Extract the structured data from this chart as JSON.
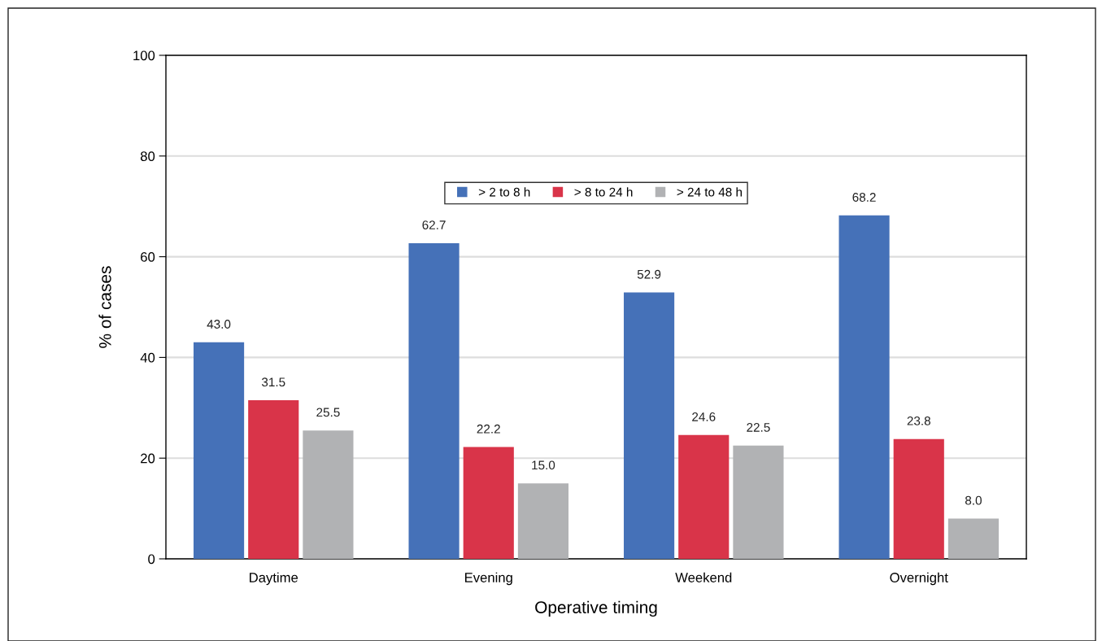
{
  "chart_data": {
    "type": "bar",
    "xlabel": "Operative timing",
    "ylabel": "% of cases",
    "categories": [
      "Daytime",
      "Evening",
      "Weekend",
      "Overnight"
    ],
    "series": [
      {
        "name": "> 2 to 8 h",
        "color": "#4571b8",
        "values": [
          43.0,
          62.7,
          52.9,
          68.2
        ],
        "value_labels": [
          "43.0",
          "62.7",
          "52.9",
          "68.2"
        ]
      },
      {
        "name": "> 8 to 24 h",
        "color": "#d93449",
        "values": [
          31.5,
          22.2,
          24.6,
          23.8
        ],
        "value_labels": [
          "31.5",
          "22.2",
          "24.6",
          "23.8"
        ]
      },
      {
        "name": "> 24 to 48 h",
        "color": "#b1b2b4",
        "values": [
          25.5,
          15.0,
          22.5,
          8.0
        ],
        "value_labels": [
          "25.5",
          "15.0",
          "22.5",
          "8.0"
        ]
      }
    ],
    "ylim": [
      0,
      100
    ],
    "yticks": [
      0,
      20,
      40,
      60,
      80,
      100
    ],
    "grid": "y",
    "legend": "top"
  }
}
